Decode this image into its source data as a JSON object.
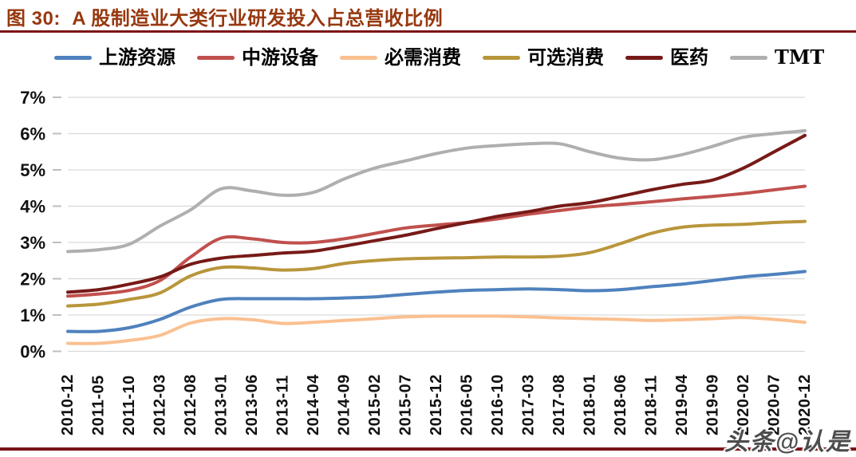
{
  "page": {
    "title": "图 30:  A 股制造业大类行业研发投入占总营收比例",
    "watermark": "头条@认是"
  },
  "colors": {
    "title_text": "#97380f",
    "rule": "#7a1418",
    "grid": "#d9d9d9",
    "tick": "#bfbfbf",
    "axis_label": "#111111",
    "watermark": "#4d4d4d"
  },
  "chart_data": {
    "type": "line",
    "title": "A 股制造业大类行业研发投入占总营收比例",
    "xlabel": "",
    "ylabel": "",
    "ylim": [
      0,
      7
    ],
    "grid": "horizontal",
    "legend_position": "top",
    "ytick_labels": [
      "0%",
      "1%",
      "2%",
      "3%",
      "4%",
      "5%",
      "6%",
      "7%"
    ],
    "x": [
      "2010-12",
      "2011-05",
      "2011-10",
      "2012-03",
      "2012-08",
      "2013-01",
      "2013-06",
      "2013-11",
      "2014-04",
      "2014-09",
      "2015-02",
      "2015-07",
      "2015-12",
      "2016-05",
      "2016-10",
      "2017-03",
      "2017-08",
      "2018-01",
      "2018-06",
      "2018-11",
      "2019-04",
      "2019-09",
      "2020-02",
      "2020-07",
      "2020-12"
    ],
    "series": [
      {
        "name": "上游资源",
        "color": "#4f81bd",
        "values": [
          0.55,
          0.55,
          0.65,
          0.88,
          1.22,
          1.43,
          1.45,
          1.45,
          1.45,
          1.47,
          1.5,
          1.57,
          1.63,
          1.68,
          1.7,
          1.72,
          1.7,
          1.67,
          1.7,
          1.78,
          1.85,
          1.95,
          2.05,
          2.12,
          2.2
        ]
      },
      {
        "name": "中游设备",
        "color": "#c0504d",
        "values": [
          1.52,
          1.58,
          1.68,
          1.95,
          2.6,
          3.12,
          3.1,
          3.0,
          3.0,
          3.1,
          3.25,
          3.4,
          3.48,
          3.55,
          3.65,
          3.78,
          3.88,
          3.98,
          4.05,
          4.12,
          4.2,
          4.27,
          4.35,
          4.45,
          4.55
        ]
      },
      {
        "name": "必需消费",
        "color": "#fac090",
        "values": [
          0.22,
          0.22,
          0.3,
          0.44,
          0.78,
          0.9,
          0.87,
          0.77,
          0.8,
          0.85,
          0.9,
          0.95,
          0.97,
          0.97,
          0.97,
          0.95,
          0.92,
          0.9,
          0.88,
          0.85,
          0.87,
          0.9,
          0.93,
          0.88,
          0.8
        ]
      },
      {
        "name": "可选消费",
        "color": "#b8963b",
        "values": [
          1.25,
          1.3,
          1.43,
          1.61,
          2.08,
          2.31,
          2.3,
          2.24,
          2.28,
          2.42,
          2.5,
          2.55,
          2.57,
          2.58,
          2.6,
          2.6,
          2.62,
          2.72,
          2.97,
          3.25,
          3.42,
          3.48,
          3.5,
          3.55,
          3.58
        ]
      },
      {
        "name": "医药",
        "color": "#771a17",
        "values": [
          1.63,
          1.7,
          1.85,
          2.05,
          2.4,
          2.57,
          2.64,
          2.71,
          2.76,
          2.9,
          3.05,
          3.2,
          3.38,
          3.55,
          3.72,
          3.85,
          4.0,
          4.1,
          4.27,
          4.45,
          4.6,
          4.72,
          5.05,
          5.5,
          5.95
        ]
      },
      {
        "name": "TMT",
        "color": "#afafaf",
        "values": [
          2.75,
          2.8,
          2.95,
          3.45,
          3.9,
          4.48,
          4.42,
          4.3,
          4.38,
          4.75,
          5.05,
          5.25,
          5.45,
          5.6,
          5.67,
          5.72,
          5.72,
          5.5,
          5.32,
          5.28,
          5.42,
          5.65,
          5.9,
          6.0,
          6.08
        ]
      }
    ]
  }
}
